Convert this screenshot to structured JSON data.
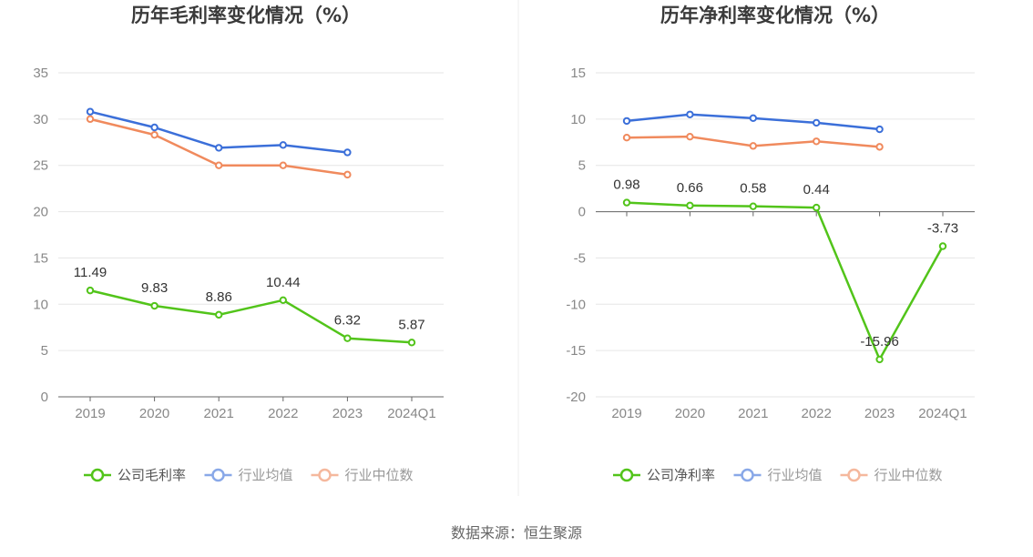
{
  "source": "数据来源：恒生聚源",
  "colors": {
    "company": "#52c41a",
    "avg": "#3b6fd9",
    "median": "#f08a5d"
  },
  "chart_data": [
    {
      "type": "line",
      "title": "历年毛利率变化情况（%）",
      "categories": [
        "2019",
        "2020",
        "2021",
        "2022",
        "2023",
        "2024Q1"
      ],
      "yticks": [
        "35",
        "30",
        "25",
        "20",
        "15",
        "10",
        "5",
        "0"
      ],
      "ylim": [
        0,
        35
      ],
      "series": [
        {
          "name": "公司毛利率",
          "key": "company",
          "values": [
            11.49,
            9.83,
            8.86,
            10.44,
            6.32,
            5.87
          ],
          "labels": [
            "11.49",
            "9.83",
            "8.86",
            "10.44",
            "6.32",
            "5.87"
          ]
        },
        {
          "name": "行业均值",
          "key": "avg",
          "values": [
            30.8,
            29.1,
            26.9,
            27.2,
            26.4,
            null
          ]
        },
        {
          "name": "行业中位数",
          "key": "median",
          "values": [
            30.0,
            28.3,
            25.0,
            25.0,
            24.0,
            null
          ]
        }
      ]
    },
    {
      "type": "line",
      "title": "历年净利率变化情况（%）",
      "categories": [
        "2019",
        "2020",
        "2021",
        "2022",
        "2023",
        "2024Q1"
      ],
      "yticks": [
        "15",
        "10",
        "5",
        "0",
        "-5",
        "-10",
        "-15",
        "-20"
      ],
      "ylim": [
        -20,
        15
      ],
      "series": [
        {
          "name": "公司净利率",
          "key": "company",
          "values": [
            0.98,
            0.66,
            0.58,
            0.44,
            -15.96,
            -3.73
          ],
          "labels": [
            "0.98",
            "0.66",
            "0.58",
            "0.44",
            "-15.96",
            "-3.73"
          ]
        },
        {
          "name": "行业均值",
          "key": "avg",
          "values": [
            9.8,
            10.5,
            10.1,
            9.6,
            8.9,
            null
          ]
        },
        {
          "name": "行业中位数",
          "key": "median",
          "values": [
            8.0,
            8.1,
            7.1,
            7.6,
            7.0,
            null
          ]
        }
      ]
    }
  ]
}
